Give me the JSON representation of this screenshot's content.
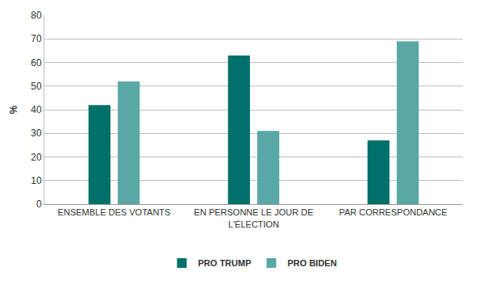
{
  "chart_data": {
    "type": "bar",
    "categories": [
      "ENSEMBLE DES VOTANTS",
      "EN PERSONNE LE JOUR DE L'ÉLECTION",
      "PAR CORRESPONDANCE"
    ],
    "series": [
      {
        "name": "PRO TRUMP",
        "color": "#00716a",
        "values": [
          42,
          63,
          27
        ]
      },
      {
        "name": "PRO BIDEN",
        "color": "#5aa8a6",
        "values": [
          52,
          31,
          69
        ]
      }
    ],
    "y_label": "%",
    "ylim": [
      0,
      80
    ],
    "yticks": [
      0,
      10,
      20,
      30,
      40,
      50,
      60,
      70,
      80
    ],
    "grid": true,
    "legend": "bottom"
  }
}
